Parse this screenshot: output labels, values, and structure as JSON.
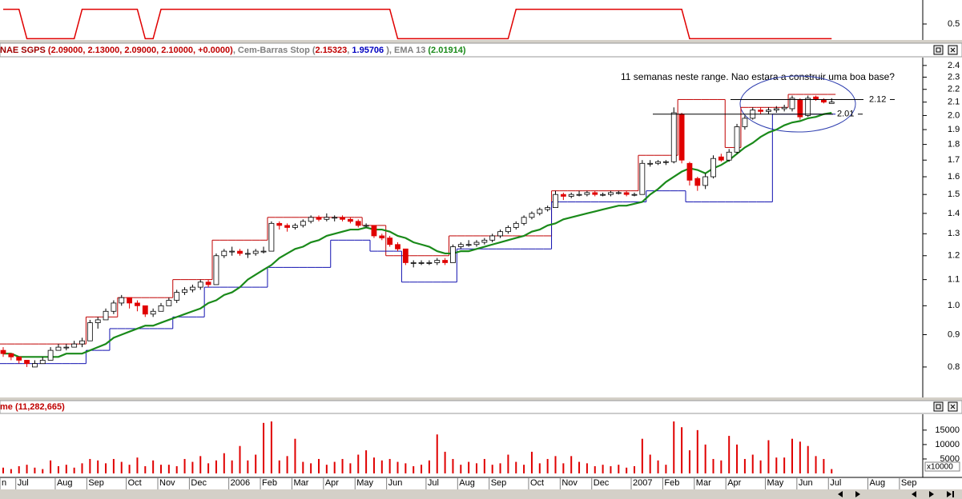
{
  "chart_data": [
    {
      "type": "line",
      "color": "#e00000",
      "ylim": [
        -0.1,
        1.1
      ],
      "yticks": [
        0.5
      ],
      "values": [
        1,
        1,
        1,
        0,
        0,
        0,
        0,
        0,
        0,
        0,
        1,
        1,
        1,
        1,
        1,
        1,
        1,
        1,
        0,
        0,
        1,
        1,
        1,
        1,
        1,
        1,
        1,
        1,
        1,
        1,
        1,
        1,
        1,
        1,
        1,
        1,
        1,
        1,
        1,
        1,
        1,
        1,
        1,
        1,
        1,
        1,
        1,
        1,
        1,
        1,
        0,
        0,
        0,
        0,
        0,
        0,
        0,
        0,
        0,
        0,
        0,
        0,
        0,
        0,
        0,
        1,
        1,
        1,
        1,
        1,
        1,
        1,
        1,
        1,
        1,
        1,
        1,
        1,
        1,
        1,
        1,
        1,
        1,
        1,
        1,
        1,
        1,
        0,
        0,
        0,
        0,
        0,
        0,
        0,
        0,
        0,
        0,
        0,
        0,
        0,
        0,
        0,
        0,
        0,
        0,
        0,
        null,
        null,
        null,
        null,
        null,
        null,
        null,
        null,
        null,
        null
      ]
    },
    {
      "type": "candlestick",
      "header": [
        {
          "text": "NAE SGPS ",
          "color": "#a00000"
        },
        {
          "text": "(2.09000, 2.13000, 2.09000, 2.10000, +0.0000)",
          "color": "#c00000"
        },
        {
          "text": ", Cem-Barras Stop (",
          "color": "#808080"
        },
        {
          "text": "2.15323",
          "color": "#c00000"
        },
        {
          "text": ", ",
          "color": "#808080"
        },
        {
          "text": "1.95706",
          "color": "#0000c0"
        },
        {
          "text": " ), EMA 13 ",
          "color": "#808080"
        },
        {
          "text": "(2.01914)",
          "color": "#1a8a1a"
        }
      ],
      "log": true,
      "ylim": [
        0.716,
        2.47
      ],
      "yticks": [
        0.8,
        0.9,
        {
          "value": 1,
          "label": "1.0"
        },
        1.1,
        1.2,
        1.3,
        1.4,
        1.5,
        1.6,
        1.7,
        1.8,
        1.9,
        {
          "value": 2,
          "label": "2.0"
        },
        2.1,
        2.2,
        2.3,
        2.4
      ],
      "up_color": "#ffffff",
      "down_color": "#e00000",
      "open": [
        0.85,
        0.84,
        0.83,
        0.82,
        0.8,
        0.81,
        0.82,
        0.85,
        0.86,
        0.86,
        0.87,
        0.88,
        0.94,
        0.95,
        0.98,
        1.01,
        1.03,
        1.01,
        1.0,
        0.97,
        0.98,
        1.0,
        1.02,
        1.05,
        1.06,
        1.07,
        1.09,
        1.08,
        1.2,
        1.22,
        1.22,
        1.21,
        1.21,
        1.22,
        1.22,
        1.35,
        1.34,
        1.33,
        1.34,
        1.36,
        1.38,
        1.37,
        1.38,
        1.38,
        1.37,
        1.36,
        1.34,
        1.34,
        1.29,
        1.28,
        1.25,
        1.23,
        1.17,
        1.17,
        1.17,
        1.17,
        1.18,
        1.17,
        1.24,
        1.25,
        1.25,
        1.26,
        1.27,
        1.29,
        1.31,
        1.33,
        1.35,
        1.38,
        1.4,
        1.42,
        1.43,
        1.5,
        1.49,
        1.5,
        1.5,
        1.51,
        1.5,
        1.5,
        1.51,
        1.51,
        1.5,
        1.5,
        1.68,
        1.68,
        1.69,
        1.69,
        2.01,
        1.68,
        1.59,
        1.55,
        1.6,
        1.72,
        1.7,
        1.75,
        1.92,
        1.98,
        2.04,
        2.03,
        2.04,
        2.05,
        2.05,
        2.12,
        2.0,
        2.14,
        2.12,
        2.09,
        null,
        null,
        null,
        null,
        null,
        null,
        null,
        null,
        null,
        null
      ],
      "high": [
        0.86,
        0.84,
        0.83,
        0.82,
        0.82,
        0.83,
        0.86,
        0.87,
        0.87,
        0.88,
        0.89,
        0.95,
        0.96,
        0.99,
        1.02,
        1.04,
        1.03,
        1.02,
        1.0,
        0.99,
        1.01,
        1.03,
        1.06,
        1.07,
        1.08,
        1.1,
        1.1,
        1.21,
        1.23,
        1.24,
        1.23,
        1.23,
        1.23,
        1.24,
        1.36,
        1.36,
        1.35,
        1.35,
        1.37,
        1.39,
        1.39,
        1.4,
        1.39,
        1.39,
        1.38,
        1.37,
        1.35,
        1.34,
        1.3,
        1.29,
        1.26,
        1.23,
        1.18,
        1.18,
        1.18,
        1.19,
        1.19,
        1.25,
        1.26,
        1.27,
        1.27,
        1.28,
        1.3,
        1.32,
        1.34,
        1.36,
        1.39,
        1.41,
        1.43,
        1.44,
        1.52,
        1.51,
        1.51,
        1.52,
        1.52,
        1.52,
        1.51,
        1.52,
        1.52,
        1.52,
        1.51,
        1.7,
        1.7,
        1.7,
        1.7,
        2.06,
        2.02,
        1.69,
        1.6,
        1.62,
        1.73,
        1.74,
        1.77,
        1.94,
        2.0,
        2.06,
        2.06,
        2.06,
        2.07,
        2.08,
        2.15,
        2.13,
        2.15,
        2.15,
        2.13,
        2.13,
        null,
        null,
        null,
        null,
        null,
        null,
        null,
        null,
        null,
        null
      ],
      "low": [
        0.83,
        0.82,
        0.81,
        0.8,
        0.8,
        0.81,
        0.82,
        0.85,
        0.85,
        0.86,
        0.86,
        0.88,
        0.92,
        0.95,
        0.97,
        1.0,
        0.99,
        0.98,
        0.96,
        0.96,
        0.98,
        1.0,
        1.01,
        1.04,
        1.05,
        1.06,
        1.07,
        1.08,
        1.19,
        1.2,
        1.2,
        1.19,
        1.2,
        1.21,
        1.22,
        1.32,
        1.31,
        1.32,
        1.33,
        1.35,
        1.36,
        1.36,
        1.36,
        1.36,
        1.35,
        1.33,
        1.33,
        1.28,
        1.27,
        1.24,
        1.22,
        1.16,
        1.15,
        1.16,
        1.16,
        1.16,
        1.16,
        1.17,
        1.23,
        1.24,
        1.24,
        1.25,
        1.26,
        1.28,
        1.3,
        1.32,
        1.34,
        1.37,
        1.39,
        1.41,
        1.43,
        1.47,
        1.48,
        1.49,
        1.49,
        1.49,
        1.49,
        1.49,
        1.5,
        1.49,
        1.49,
        1.5,
        1.66,
        1.67,
        1.67,
        1.68,
        1.68,
        1.55,
        1.52,
        1.53,
        1.59,
        1.69,
        1.69,
        1.74,
        1.9,
        1.97,
        2.01,
        2.01,
        2.02,
        2.03,
        2.03,
        1.97,
        1.99,
        2.11,
        2.09,
        2.09,
        null,
        null,
        null,
        null,
        null,
        null,
        null,
        null,
        null,
        null
      ],
      "close": [
        0.84,
        0.83,
        0.82,
        0.81,
        0.81,
        0.82,
        0.85,
        0.86,
        0.86,
        0.87,
        0.88,
        0.94,
        0.95,
        0.98,
        1.01,
        1.03,
        1.01,
        1.0,
        0.97,
        0.98,
        1.0,
        1.02,
        1.05,
        1.06,
        1.07,
        1.09,
        1.08,
        1.2,
        1.22,
        1.22,
        1.21,
        1.21,
        1.22,
        1.22,
        1.35,
        1.34,
        1.33,
        1.34,
        1.36,
        1.38,
        1.37,
        1.38,
        1.38,
        1.37,
        1.36,
        1.34,
        1.34,
        1.29,
        1.28,
        1.25,
        1.23,
        1.17,
        1.17,
        1.17,
        1.17,
        1.18,
        1.17,
        1.24,
        1.25,
        1.25,
        1.26,
        1.27,
        1.29,
        1.31,
        1.33,
        1.35,
        1.38,
        1.4,
        1.42,
        1.43,
        1.5,
        1.49,
        1.5,
        1.5,
        1.51,
        1.5,
        1.5,
        1.51,
        1.51,
        1.5,
        1.5,
        1.68,
        1.68,
        1.69,
        1.69,
        2.02,
        1.7,
        1.58,
        1.55,
        1.6,
        1.71,
        1.7,
        1.75,
        1.92,
        1.98,
        2.04,
        2.03,
        2.04,
        2.05,
        2.06,
        2.13,
        1.99,
        2.13,
        2.12,
        2.1,
        2.1,
        null,
        null,
        null,
        null,
        null,
        null,
        null,
        null,
        null,
        null
      ],
      "series": [
        {
          "type": "step",
          "color": "#c00000",
          "values": [
            0.87,
            0.87,
            0.87,
            0.87,
            0.87,
            0.87,
            0.87,
            0.87,
            0.87,
            0.87,
            0.87,
            0.96,
            0.96,
            0.96,
            0.96,
            1.03,
            1.03,
            1.03,
            1.03,
            1.03,
            1.03,
            1.03,
            1.1,
            1.1,
            1.1,
            1.1,
            1.1,
            1.27,
            1.27,
            1.27,
            1.27,
            1.27,
            1.27,
            1.27,
            1.38,
            1.38,
            1.38,
            1.38,
            1.38,
            1.38,
            1.38,
            1.38,
            1.38,
            1.38,
            1.38,
            1.38,
            1.34,
            1.34,
            1.34,
            1.2,
            1.2,
            1.2,
            1.2,
            1.2,
            1.2,
            1.2,
            1.2,
            1.29,
            1.29,
            1.29,
            1.29,
            1.29,
            1.29,
            1.29,
            1.29,
            1.29,
            1.29,
            1.29,
            1.29,
            1.29,
            1.52,
            1.52,
            1.52,
            1.52,
            1.52,
            1.52,
            1.52,
            1.52,
            1.52,
            1.52,
            1.52,
            1.73,
            1.73,
            1.73,
            1.73,
            1.73,
            2.12,
            2.12,
            2.12,
            2.12,
            2.12,
            2.12,
            1.78,
            1.78,
            2.06,
            2.06,
            2.06,
            2.06,
            2.06,
            2.06,
            2.16,
            2.16,
            2.16,
            2.16,
            2.16,
            2.16,
            null,
            null,
            null,
            null,
            null,
            null,
            null,
            null,
            null,
            null
          ]
        },
        {
          "type": "step",
          "color": "#1010b0",
          "values": [
            0.81,
            0.81,
            0.81,
            0.81,
            0.81,
            0.81,
            0.81,
            0.81,
            0.81,
            0.81,
            0.81,
            0.85,
            0.85,
            0.85,
            0.92,
            0.92,
            0.92,
            0.92,
            0.92,
            0.92,
            0.92,
            0.92,
            0.96,
            0.96,
            0.96,
            0.96,
            1.07,
            1.07,
            1.07,
            1.07,
            1.07,
            1.07,
            1.07,
            1.07,
            1.15,
            1.15,
            1.15,
            1.15,
            1.15,
            1.15,
            1.15,
            1.15,
            1.27,
            1.27,
            1.27,
            1.27,
            1.27,
            1.22,
            1.22,
            1.22,
            1.22,
            1.09,
            1.09,
            1.09,
            1.09,
            1.09,
            1.09,
            1.09,
            1.23,
            1.23,
            1.23,
            1.23,
            1.23,
            1.23,
            1.23,
            1.23,
            1.23,
            1.23,
            1.23,
            1.23,
            1.46,
            1.46,
            1.46,
            1.46,
            1.46,
            1.46,
            1.46,
            1.46,
            1.46,
            1.46,
            1.46,
            1.46,
            1.52,
            1.52,
            1.52,
            1.52,
            1.52,
            1.46,
            1.46,
            1.46,
            1.46,
            1.46,
            1.46,
            1.46,
            1.46,
            1.46,
            1.46,
            1.46,
            2.01,
            2.01,
            2.01,
            2.01,
            2.01,
            2.01,
            2.01,
            2.01,
            null,
            null,
            null,
            null,
            null,
            null,
            null,
            null,
            null,
            null
          ]
        },
        {
          "type": "line",
          "color": "#1a8a1a",
          "values": [
            0.84,
            0.84,
            0.83,
            0.83,
            0.83,
            0.83,
            0.83,
            0.83,
            0.84,
            0.84,
            0.84,
            0.85,
            0.86,
            0.87,
            0.89,
            0.9,
            0.91,
            0.92,
            0.93,
            0.93,
            0.94,
            0.95,
            0.96,
            0.97,
            0.98,
            0.99,
            1.01,
            1.02,
            1.04,
            1.05,
            1.07,
            1.1,
            1.12,
            1.14,
            1.16,
            1.19,
            1.21,
            1.23,
            1.24,
            1.26,
            1.27,
            1.29,
            1.3,
            1.31,
            1.32,
            1.32,
            1.33,
            1.32,
            1.32,
            1.31,
            1.29,
            1.28,
            1.26,
            1.25,
            1.24,
            1.22,
            1.21,
            1.21,
            1.22,
            1.22,
            1.23,
            1.24,
            1.25,
            1.26,
            1.27,
            1.28,
            1.29,
            1.31,
            1.32,
            1.34,
            1.35,
            1.37,
            1.38,
            1.39,
            1.4,
            1.41,
            1.42,
            1.43,
            1.44,
            1.44,
            1.45,
            1.46,
            1.5,
            1.53,
            1.57,
            1.6,
            1.63,
            1.65,
            1.64,
            1.62,
            1.65,
            1.67,
            1.7,
            1.74,
            1.78,
            1.81,
            1.85,
            1.88,
            1.9,
            1.93,
            1.95,
            1.96,
            1.98,
            1.99,
            2.01,
            2.02,
            null,
            null,
            null,
            null,
            null,
            null,
            null,
            null,
            null,
            null
          ]
        }
      ],
      "annotation": {
        "text": "11 semanas neste range. Nao estara a construir uma boa base?",
        "color": "#2828c0"
      },
      "levels": [
        2.12,
        2.01
      ]
    },
    {
      "type": "bar",
      "color": "#e00000",
      "header": [
        {
          "text": "me (11,282,665)",
          "color": "#c00000"
        }
      ],
      "ylim": [
        0,
        20500
      ],
      "yticks": [
        5000,
        10000,
        15000
      ],
      "yunit": "x10000",
      "values": [
        2000,
        1500,
        2500,
        3000,
        2000,
        1500,
        4500,
        2500,
        3000,
        2000,
        3500,
        5000,
        4500,
        3500,
        5000,
        4000,
        3000,
        5500,
        2500,
        4500,
        3000,
        3000,
        2500,
        5000,
        4000,
        6000,
        3500,
        4500,
        7000,
        4500,
        9500,
        4500,
        6500,
        17500,
        18000,
        4500,
        6000,
        12000,
        4000,
        3500,
        5000,
        3000,
        4000,
        5000,
        3500,
        6500,
        8000,
        5500,
        4500,
        5000,
        4000,
        3500,
        2500,
        3000,
        4500,
        13500,
        7500,
        5000,
        3000,
        4000,
        3500,
        5000,
        3000,
        3500,
        6500,
        4000,
        3000,
        7500,
        3500,
        5000,
        6000,
        3500,
        6000,
        4000,
        3500,
        2500,
        3000,
        2500,
        3000,
        2000,
        2500,
        12000,
        6500,
        4500,
        3000,
        18000,
        16000,
        8000,
        15000,
        10000,
        5000,
        4500,
        13000,
        10000,
        5000,
        6500,
        4500,
        11500,
        5500,
        5500,
        12000,
        11000,
        9500,
        6000,
        5000,
        1500,
        null,
        null,
        null,
        null,
        null,
        null,
        null,
        null,
        null,
        null
      ],
      "categories": [
        "n",
        null,
        "Jul",
        null,
        null,
        null,
        null,
        "Aug",
        null,
        null,
        null,
        "Sep",
        null,
        null,
        null,
        null,
        "Oct",
        null,
        null,
        null,
        "Nov",
        null,
        null,
        null,
        "Dec",
        null,
        null,
        null,
        null,
        "2006",
        null,
        null,
        null,
        "Feb",
        null,
        null,
        null,
        "Mar",
        null,
        null,
        null,
        "Apr",
        null,
        null,
        null,
        "May",
        null,
        null,
        null,
        "Jun",
        null,
        null,
        null,
        null,
        "Jul",
        null,
        null,
        null,
        "Aug",
        null,
        null,
        null,
        "Sep",
        null,
        null,
        null,
        null,
        "Oct",
        null,
        null,
        null,
        "Nov",
        null,
        null,
        null,
        "Dec",
        null,
        null,
        null,
        null,
        "2007",
        null,
        null,
        null,
        "Feb",
        null,
        null,
        null,
        "Mar",
        null,
        null,
        null,
        "Apr",
        null,
        null,
        null,
        null,
        "May",
        null,
        null,
        null,
        "Jun",
        null,
        null,
        null,
        "Jul",
        null,
        null,
        null,
        null,
        "Aug",
        null,
        null,
        null,
        "Sep",
        null
      ]
    }
  ]
}
